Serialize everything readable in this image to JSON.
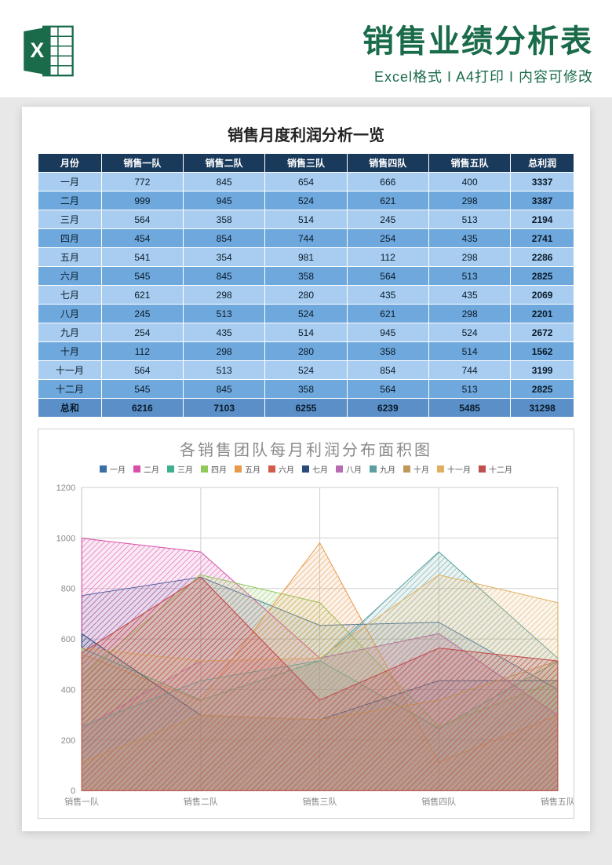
{
  "header": {
    "title": "销售业绩分析表",
    "subtitle": "Excel格式 I A4打印 I 内容可修改",
    "icon_fill": "#1a6b4a",
    "icon_letter": "X"
  },
  "table": {
    "title": "销售月度利润分析一览",
    "columns": [
      "月份",
      "销售一队",
      "销售二队",
      "销售三队",
      "销售四队",
      "销售五队",
      "总利润"
    ],
    "rows": [
      [
        "一月",
        "772",
        "845",
        "654",
        "666",
        "400",
        "3337"
      ],
      [
        "二月",
        "999",
        "945",
        "524",
        "621",
        "298",
        "3387"
      ],
      [
        "三月",
        "564",
        "358",
        "514",
        "245",
        "513",
        "2194"
      ],
      [
        "四月",
        "454",
        "854",
        "744",
        "254",
        "435",
        "2741"
      ],
      [
        "五月",
        "541",
        "354",
        "981",
        "112",
        "298",
        "2286"
      ],
      [
        "六月",
        "545",
        "845",
        "358",
        "564",
        "513",
        "2825"
      ],
      [
        "七月",
        "621",
        "298",
        "280",
        "435",
        "435",
        "2069"
      ],
      [
        "八月",
        "245",
        "513",
        "524",
        "621",
        "298",
        "2201"
      ],
      [
        "九月",
        "254",
        "435",
        "514",
        "945",
        "524",
        "2672"
      ],
      [
        "十月",
        "112",
        "298",
        "280",
        "358",
        "514",
        "1562"
      ],
      [
        "十一月",
        "564",
        "513",
        "524",
        "854",
        "744",
        "3199"
      ],
      [
        "十二月",
        "545",
        "845",
        "358",
        "564",
        "513",
        "2825"
      ]
    ],
    "total_row": [
      "总和",
      "6216",
      "7103",
      "6255",
      "6239",
      "5485",
      "31298"
    ],
    "header_bg": "#1a3a5c",
    "row_light": "#a8cdf0",
    "row_dark": "#6fa8dc",
    "total_bg": "#5a8fc8"
  },
  "chart": {
    "type": "area",
    "title": "各销售团队每月利润分布面积图",
    "x_categories": [
      "销售一队",
      "销售二队",
      "销售三队",
      "销售四队",
      "销售五队"
    ],
    "ylim": [
      0,
      1200
    ],
    "ytick_step": 200,
    "grid_color": "#d0d0d0",
    "background_color": "#ffffff",
    "axis_label_color": "#888888",
    "axis_label_fontsize": 11,
    "legend_months": [
      "一月",
      "二月",
      "三月",
      "四月",
      "五月",
      "六月",
      "七月",
      "八月",
      "九月",
      "十月",
      "十一月",
      "十二月"
    ],
    "series_colors": [
      "#3a6ea5",
      "#d94fa8",
      "#3fb08f",
      "#8fc95a",
      "#e89a4a",
      "#d45a4a",
      "#2a4a7a",
      "#b86bb0",
      "#5aa0a0",
      "#c0985a",
      "#e0b060",
      "#c05050"
    ],
    "series": [
      {
        "name": "一月",
        "values": [
          772,
          845,
          654,
          666,
          400
        ]
      },
      {
        "name": "二月",
        "values": [
          999,
          945,
          524,
          621,
          298
        ]
      },
      {
        "name": "三月",
        "values": [
          564,
          358,
          514,
          245,
          513
        ]
      },
      {
        "name": "四月",
        "values": [
          454,
          854,
          744,
          254,
          435
        ]
      },
      {
        "name": "五月",
        "values": [
          541,
          354,
          981,
          112,
          298
        ]
      },
      {
        "name": "六月",
        "values": [
          545,
          845,
          358,
          564,
          513
        ]
      },
      {
        "name": "七月",
        "values": [
          621,
          298,
          280,
          435,
          435
        ]
      },
      {
        "name": "八月",
        "values": [
          245,
          513,
          524,
          621,
          298
        ]
      },
      {
        "name": "九月",
        "values": [
          254,
          435,
          514,
          945,
          524
        ]
      },
      {
        "name": "十月",
        "values": [
          112,
          298,
          280,
          358,
          514
        ]
      },
      {
        "name": "十一月",
        "values": [
          564,
          513,
          524,
          854,
          744
        ]
      },
      {
        "name": "十二月",
        "values": [
          545,
          845,
          358,
          564,
          513
        ]
      }
    ]
  }
}
